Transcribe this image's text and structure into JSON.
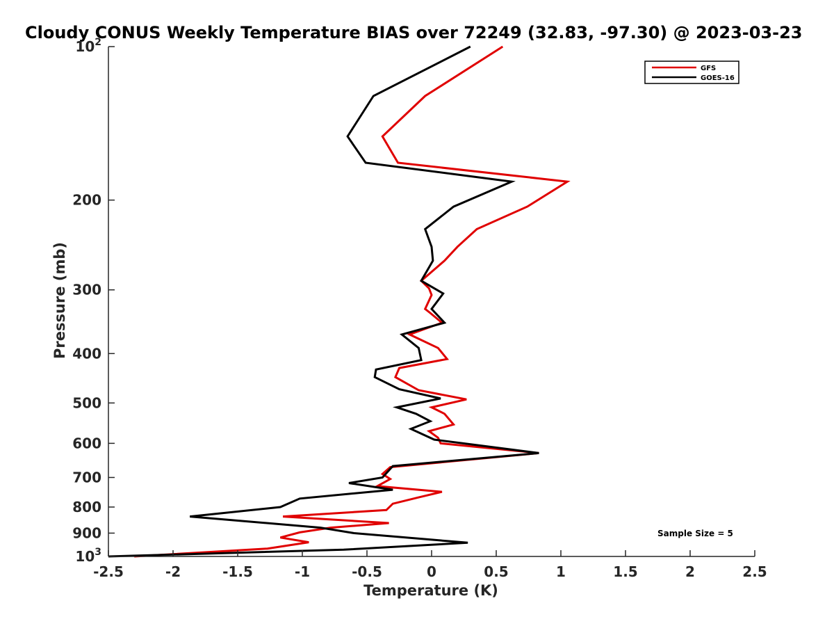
{
  "chart_data": {
    "type": "line",
    "title": "Cloudy CONUS Weekly Temperature BIAS over 72249 (32.83, -97.30) @ 2023-03-23",
    "xlabel": "Temperature (K)",
    "ylabel": "Pressure (mb)",
    "xlim": [
      -2.5,
      2.5
    ],
    "ylim": [
      100,
      1000
    ],
    "yscale": "log",
    "y_reversed": true,
    "xticks": [
      -2.5,
      -2,
      -1.5,
      -1,
      -0.5,
      0,
      0.5,
      1,
      1.5,
      2,
      2.5
    ],
    "xtick_labels": [
      "-2.5",
      "-2",
      "-1.5",
      "-1",
      "-0.5",
      "0",
      "0.5",
      "1",
      "1.5",
      "2",
      "2.5"
    ],
    "yticks": [
      {
        "value": 100,
        "base": "10",
        "exp": "2"
      },
      {
        "value": 200,
        "label": "200"
      },
      {
        "value": 300,
        "label": "300"
      },
      {
        "value": 400,
        "label": "400"
      },
      {
        "value": 500,
        "label": "500"
      },
      {
        "value": 600,
        "label": "600"
      },
      {
        "value": 700,
        "label": "700"
      },
      {
        "value": 800,
        "label": "800"
      },
      {
        "value": 900,
        "label": "900"
      },
      {
        "value": 1000,
        "base": "10",
        "exp": "3"
      }
    ],
    "grid": false,
    "legend_position": "top-right",
    "annotation": "Sample Size = 5",
    "series": [
      {
        "name": "GFS",
        "color": "#e00000",
        "points": [
          [
            0.55,
            100
          ],
          [
            -0.05,
            125
          ],
          [
            -0.38,
            150
          ],
          [
            -0.26,
            169
          ],
          [
            1.05,
            184
          ],
          [
            0.74,
            206
          ],
          [
            0.35,
            228
          ],
          [
            0.2,
            247
          ],
          [
            0.1,
            263
          ],
          [
            -0.08,
            288
          ],
          [
            -0.02,
            298
          ],
          [
            0.0,
            307
          ],
          [
            -0.05,
            327
          ],
          [
            -0.01,
            333
          ],
          [
            0.08,
            348
          ],
          [
            -0.17,
            367
          ],
          [
            0.05,
            390
          ],
          [
            0.12,
            410
          ],
          [
            -0.25,
            427
          ],
          [
            -0.28,
            445
          ],
          [
            -0.1,
            472
          ],
          [
            0.27,
            492
          ],
          [
            0.0,
            510
          ],
          [
            0.1,
            525
          ],
          [
            0.17,
            551
          ],
          [
            -0.02,
            568
          ],
          [
            0.05,
            585
          ],
          [
            0.07,
            600
          ],
          [
            0.83,
            627
          ],
          [
            -0.32,
            668
          ],
          [
            -0.38,
            689
          ],
          [
            -0.32,
            705
          ],
          [
            -0.42,
            728
          ],
          [
            0.08,
            747
          ],
          [
            -0.1,
            766
          ],
          [
            -0.3,
            788
          ],
          [
            -0.35,
            811
          ],
          [
            -1.15,
            835
          ],
          [
            -0.33,
            860
          ],
          [
            -0.78,
            878
          ],
          [
            -1.02,
            897
          ],
          [
            -1.17,
            918
          ],
          [
            -0.95,
            938
          ],
          [
            -1.27,
            965
          ],
          [
            -2.3,
            1000
          ]
        ]
      },
      {
        "name": "GOES-16",
        "color": "#000000",
        "points": [
          [
            0.3,
            100
          ],
          [
            -0.45,
            125
          ],
          [
            -0.65,
            150
          ],
          [
            -0.51,
            169
          ],
          [
            0.62,
            184
          ],
          [
            0.17,
            206
          ],
          [
            -0.05,
            228
          ],
          [
            0.0,
            247
          ],
          [
            0.01,
            263
          ],
          [
            -0.08,
            288
          ],
          [
            0.09,
            305
          ],
          [
            0.0,
            327
          ],
          [
            0.1,
            348
          ],
          [
            -0.23,
            367
          ],
          [
            -0.1,
            390
          ],
          [
            -0.08,
            412
          ],
          [
            -0.43,
            430
          ],
          [
            -0.44,
            445
          ],
          [
            -0.25,
            470
          ],
          [
            0.07,
            490
          ],
          [
            -0.27,
            510
          ],
          [
            -0.12,
            525
          ],
          [
            -0.01,
            543
          ],
          [
            -0.16,
            562
          ],
          [
            0.02,
            590
          ],
          [
            0.83,
            627
          ],
          [
            -0.3,
            665
          ],
          [
            -0.34,
            682
          ],
          [
            -0.38,
            700
          ],
          [
            -0.64,
            718
          ],
          [
            -0.3,
            740
          ],
          [
            -1.02,
            770
          ],
          [
            -1.17,
            800
          ],
          [
            -1.87,
            835
          ],
          [
            -0.86,
            878
          ],
          [
            -0.6,
            900
          ],
          [
            0.28,
            940
          ],
          [
            -0.68,
            970
          ],
          [
            -2.5,
            1000
          ]
        ]
      }
    ]
  }
}
